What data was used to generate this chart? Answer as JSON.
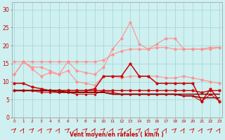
{
  "xlabel": "Vent moyen/en rafales ( km/h )",
  "x": [
    0,
    1,
    2,
    3,
    4,
    5,
    6,
    7,
    8,
    9,
    10,
    11,
    12,
    13,
    14,
    15,
    16,
    17,
    18,
    19,
    20,
    21,
    22,
    23
  ],
  "bg_color": "#cff0f0",
  "grid_color": "#a8d8d8",
  "pink": "#ff9090",
  "red": "#cc0000",
  "darkred": "#880000",
  "ylim": [
    0,
    32
  ],
  "xlim": [
    -0.3,
    23.3
  ],
  "yticks": [
    0,
    5,
    10,
    15,
    20,
    25,
    30
  ],
  "line1_envelope": [
    15.5,
    15.5,
    15.5,
    15.5,
    15.5,
    15.5,
    15.5,
    15.5,
    15.5,
    15.5,
    16.0,
    17.5,
    18.5,
    19.0,
    19.0,
    19.0,
    19.5,
    19.5,
    19.0,
    19.0,
    19.0,
    19.0,
    19.0,
    19.5
  ],
  "line2_pink_jagged": [
    12.0,
    15.5,
    14.0,
    14.0,
    13.0,
    12.0,
    15.5,
    13.0,
    12.5,
    12.0,
    14.0,
    19.0,
    22.0,
    26.5,
    20.5,
    19.0,
    20.5,
    22.0,
    22.0,
    19.0,
    19.0,
    19.0,
    19.5,
    19.5
  ],
  "line3_pink_lower": [
    12.0,
    15.5,
    13.5,
    11.5,
    12.5,
    12.0,
    13.0,
    10.0,
    9.5,
    9.0,
    11.5,
    11.5,
    11.0,
    11.5,
    11.5,
    11.5,
    11.5,
    11.0,
    11.0,
    11.5,
    11.0,
    10.5,
    10.0,
    9.5
  ],
  "line4_red_spiky": [
    9.5,
    9.5,
    8.5,
    8.0,
    7.5,
    7.5,
    7.5,
    7.5,
    7.5,
    8.0,
    11.5,
    11.5,
    11.5,
    15.0,
    11.5,
    11.5,
    9.5,
    9.5,
    9.5,
    9.5,
    9.5,
    4.5,
    8.0,
    4.5
  ],
  "line5_red_flat": [
    7.5,
    7.5,
    7.5,
    7.5,
    7.5,
    7.5,
    7.5,
    7.5,
    7.5,
    7.5,
    7.5,
    7.5,
    7.5,
    7.5,
    7.5,
    7.5,
    7.5,
    7.5,
    7.5,
    7.5,
    7.5,
    7.0,
    7.5,
    7.5
  ],
  "line6_darkred_taper": [
    7.5,
    7.5,
    7.5,
    7.5,
    7.5,
    7.5,
    7.0,
    7.0,
    7.0,
    7.0,
    7.0,
    6.5,
    6.5,
    6.5,
    6.5,
    6.5,
    6.5,
    6.5,
    6.5,
    6.0,
    6.0,
    5.5,
    5.5,
    5.5
  ],
  "line7_red_low": [
    7.5,
    7.5,
    7.5,
    7.0,
    7.0,
    7.0,
    7.0,
    6.5,
    6.5,
    6.5,
    7.5,
    7.0,
    6.5,
    6.5,
    6.5,
    6.5,
    6.5,
    6.5,
    6.5,
    6.0,
    6.0,
    4.5,
    6.5,
    4.5
  ],
  "line8_darkred_flat": [
    7.5,
    7.5,
    7.5,
    7.5,
    7.5,
    7.0,
    7.0,
    7.0,
    7.0,
    7.0,
    7.0,
    6.5,
    6.5,
    6.5,
    6.5,
    6.5,
    6.5,
    6.5,
    6.5,
    6.5,
    6.5,
    6.5,
    6.5,
    6.5
  ]
}
